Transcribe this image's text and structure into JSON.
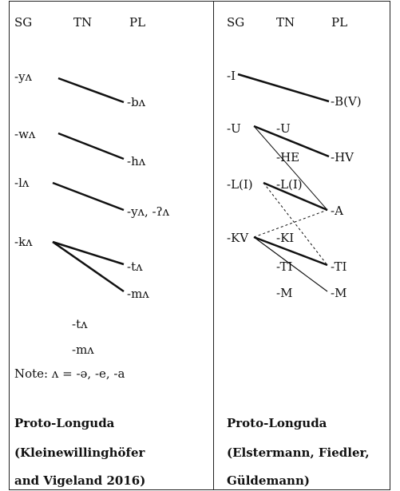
{
  "left": {
    "headers": {
      "sg": "SG",
      "tn": "TN",
      "pl": "PL"
    },
    "sg_forms": [
      "-yʌ",
      "-wʌ",
      "-lʌ",
      "-kʌ"
    ],
    "pl_forms": [
      "-bʌ",
      "-hʌ",
      "-yʌ, -ʔʌ",
      "-tʌ",
      "-mʌ"
    ],
    "tn_forms": [
      "-tʌ",
      "-mʌ"
    ],
    "note": "Note: ʌ = -ə, -e, -a",
    "title": [
      "Proto-Longuda",
      "(Kleinewillinghöfer",
      "and Vigeland 2016)"
    ]
  },
  "right": {
    "headers": {
      "sg": "SG",
      "tn": "TN",
      "pl": "PL"
    },
    "sg_forms": [
      "-I",
      "-U",
      "-L(I)",
      "-KV"
    ],
    "tn_forms": [
      "-U",
      "-HE",
      "-L(I)",
      "-KI",
      "-TI",
      "-M"
    ],
    "pl_forms": [
      "-B(V)",
      "-HV",
      "-A",
      "-TI",
      "-M"
    ],
    "title": [
      "Proto-Longuda",
      "(Elstermann, Fiedler,",
      "Güldemann)"
    ]
  }
}
